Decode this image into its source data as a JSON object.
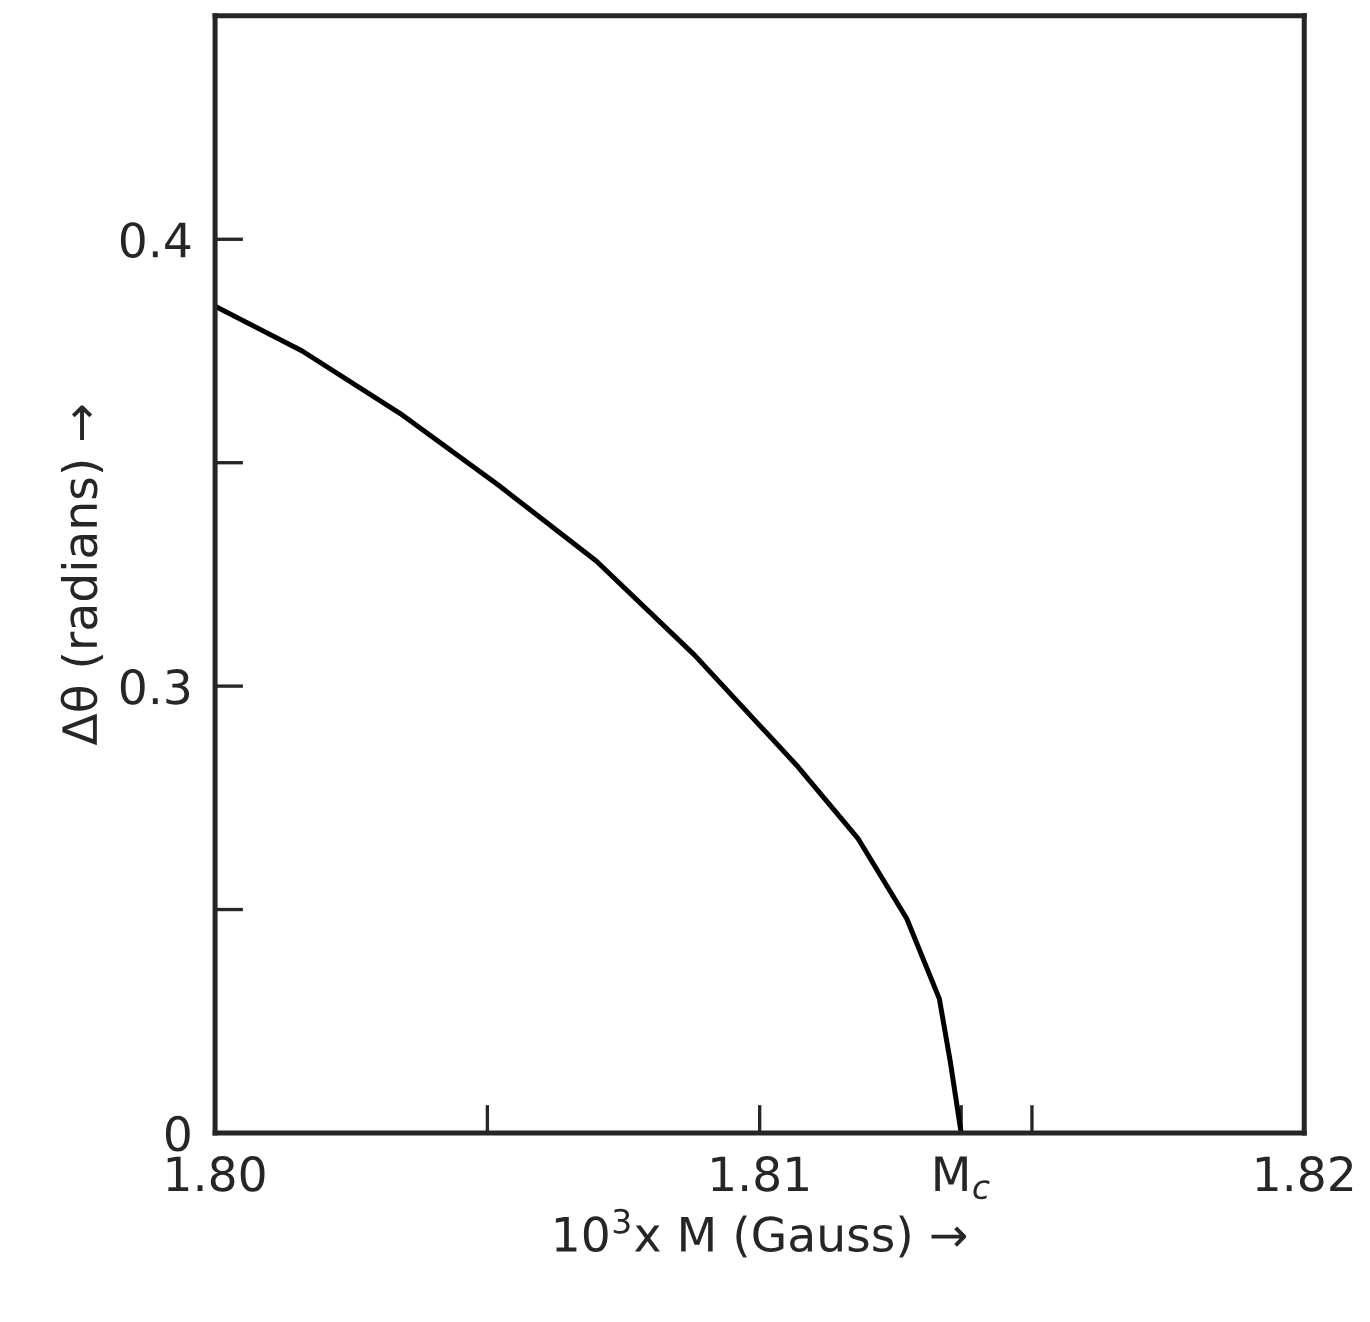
{
  "chart_data": {
    "type": "line",
    "xlabel": "10$^{3}$x M (Gauss) →",
    "ylabel": "Δθ (radians) →",
    "xlim": [
      1.8,
      1.82
    ],
    "ylim": [
      0.2,
      0.45
    ],
    "xticks": [
      {
        "value": 1.8,
        "label": "1.80"
      },
      {
        "value": 1.805,
        "label": null
      },
      {
        "value": 1.81,
        "label": "1.81"
      },
      {
        "value": 1.8137,
        "label": "M$_{c}$"
      },
      {
        "value": 1.815,
        "label": null
      },
      {
        "value": 1.82,
        "label": "1.82"
      }
    ],
    "yticks": [
      {
        "value": 0.2,
        "label": "0"
      },
      {
        "value": 0.25,
        "label": null
      },
      {
        "value": 0.3,
        "label": "0.3"
      },
      {
        "value": 0.35,
        "label": null
      },
      {
        "value": 0.4,
        "label": "0.4"
      }
    ],
    "grid": false,
    "legend": false,
    "marker": "none",
    "line_style": "solid",
    "series": [
      {
        "color": "#000000",
        "x": [
          1.8,
          1.8016,
          1.8034,
          1.8052,
          1.807,
          1.8088,
          1.8107,
          1.8118,
          1.8127,
          1.8133,
          1.8135,
          1.8137
        ],
        "values": [
          0.385,
          0.375,
          0.361,
          0.345,
          0.328,
          0.307,
          0.282,
          0.266,
          0.248,
          0.23,
          0.216,
          0.2
        ]
      }
    ]
  }
}
